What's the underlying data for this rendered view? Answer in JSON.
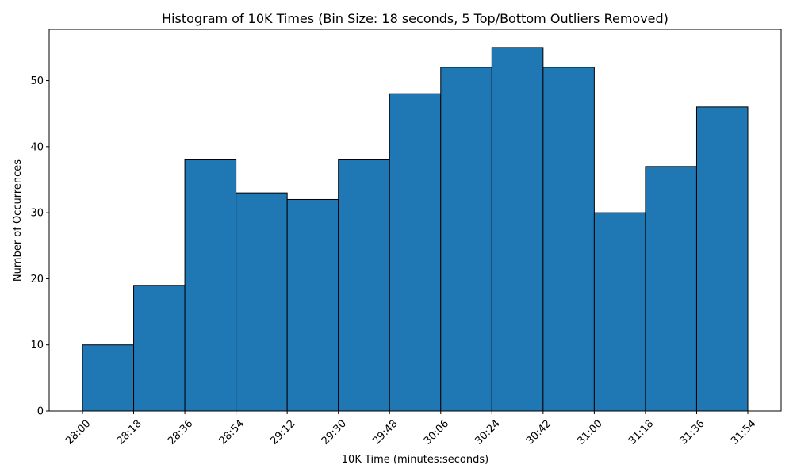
{
  "chart_data": {
    "type": "bar",
    "title": "Histogram of 10K Times (Bin Size: 18 seconds, 5 Top/Bottom Outliers Removed)",
    "xlabel": "10K Time (minutes:seconds)",
    "ylabel": "Number of Occurrences",
    "bin_edges": [
      "28:00",
      "28:18",
      "28:36",
      "28:54",
      "29:12",
      "29:30",
      "29:48",
      "30:06",
      "30:24",
      "30:42",
      "31:00",
      "31:18",
      "31:36",
      "31:54"
    ],
    "values": [
      10,
      19,
      38,
      33,
      32,
      38,
      48,
      52,
      55,
      52,
      30,
      37,
      46
    ],
    "y_ticks": [
      0,
      10,
      20,
      30,
      40,
      50
    ],
    "ylim": [
      0,
      57.75
    ],
    "bar_color": "#1f77b4",
    "grid": false,
    "legend": "none"
  }
}
